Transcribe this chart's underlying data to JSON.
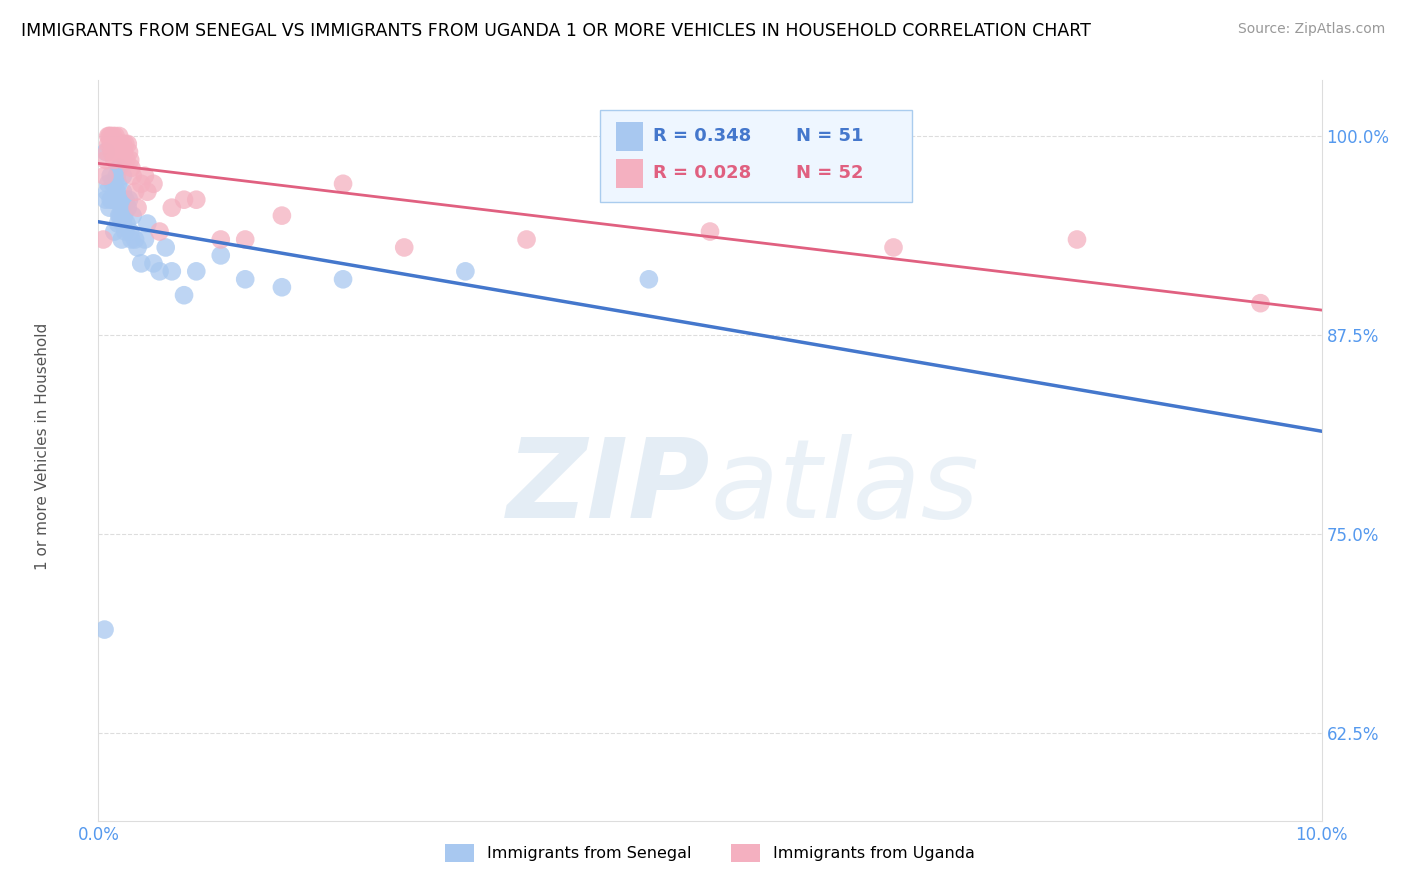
{
  "title": "IMMIGRANTS FROM SENEGAL VS IMMIGRANTS FROM UGANDA 1 OR MORE VEHICLES IN HOUSEHOLD CORRELATION CHART",
  "source": "Source: ZipAtlas.com",
  "ylabel": "1 or more Vehicles in Household",
  "y_ticks": [
    62.5,
    75.0,
    87.5,
    100.0
  ],
  "y_tick_labels": [
    "62.5%",
    "75.0%",
    "87.5%",
    "100.0%"
  ],
  "x_min": 0.0,
  "x_max": 10.0,
  "y_min": 57.0,
  "y_max": 103.5,
  "senegal_R": 0.348,
  "senegal_N": 51,
  "uganda_R": 0.028,
  "uganda_N": 52,
  "senegal_color": "#a8c8f0",
  "uganda_color": "#f4b0c0",
  "senegal_line_color": "#4477cc",
  "uganda_line_color": "#e06080",
  "watermark_zip": "ZIP",
  "watermark_atlas": "atlas",
  "watermark_color_zip": "#b8cce4",
  "watermark_color_atlas": "#b8cce4",
  "senegal_x": [
    0.05,
    0.06,
    0.06,
    0.07,
    0.08,
    0.09,
    0.1,
    0.1,
    0.11,
    0.12,
    0.13,
    0.14,
    0.15,
    0.15,
    0.16,
    0.16,
    0.17,
    0.17,
    0.18,
    0.18,
    0.19,
    0.19,
    0.2,
    0.2,
    0.2,
    0.21,
    0.22,
    0.22,
    0.23,
    0.24,
    0.25,
    0.26,
    0.27,
    0.28,
    0.3,
    0.32,
    0.35,
    0.38,
    0.4,
    0.45,
    0.5,
    0.55,
    0.6,
    0.7,
    0.8,
    1.0,
    1.2,
    1.5,
    2.0,
    3.0,
    4.5
  ],
  "senegal_y": [
    69.0,
    96.0,
    99.0,
    96.5,
    97.0,
    95.5,
    96.0,
    97.5,
    96.0,
    97.0,
    94.0,
    96.0,
    96.5,
    97.5,
    94.5,
    97.0,
    95.0,
    98.0,
    95.0,
    96.0,
    93.5,
    95.5,
    94.5,
    96.5,
    97.5,
    95.0,
    94.0,
    96.0,
    94.5,
    95.5,
    96.0,
    94.0,
    93.5,
    95.0,
    93.5,
    93.0,
    92.0,
    93.5,
    94.5,
    92.0,
    91.5,
    93.0,
    91.5,
    90.0,
    91.5,
    92.5,
    91.0,
    90.5,
    91.0,
    91.5,
    91.0
  ],
  "uganda_x": [
    0.04,
    0.05,
    0.06,
    0.07,
    0.08,
    0.08,
    0.09,
    0.1,
    0.1,
    0.11,
    0.11,
    0.12,
    0.12,
    0.13,
    0.14,
    0.15,
    0.15,
    0.16,
    0.17,
    0.18,
    0.18,
    0.19,
    0.2,
    0.2,
    0.21,
    0.22,
    0.23,
    0.24,
    0.25,
    0.26,
    0.27,
    0.28,
    0.3,
    0.32,
    0.35,
    0.38,
    0.4,
    0.45,
    0.5,
    0.6,
    0.7,
    0.8,
    1.0,
    1.2,
    1.5,
    2.0,
    2.5,
    3.5,
    5.0,
    6.5,
    8.0,
    9.5
  ],
  "uganda_y": [
    93.5,
    97.5,
    98.5,
    99.0,
    100.0,
    99.5,
    100.0,
    99.5,
    100.0,
    99.5,
    99.0,
    100.0,
    99.5,
    98.5,
    100.0,
    99.5,
    99.0,
    99.5,
    100.0,
    99.0,
    99.5,
    99.0,
    99.5,
    98.5,
    99.0,
    99.5,
    98.5,
    99.5,
    99.0,
    98.5,
    98.0,
    97.5,
    96.5,
    95.5,
    97.0,
    97.5,
    96.5,
    97.0,
    94.0,
    95.5,
    96.0,
    96.0,
    93.5,
    93.5,
    95.0,
    97.0,
    93.0,
    93.5,
    94.0,
    93.0,
    93.5,
    89.5
  ]
}
